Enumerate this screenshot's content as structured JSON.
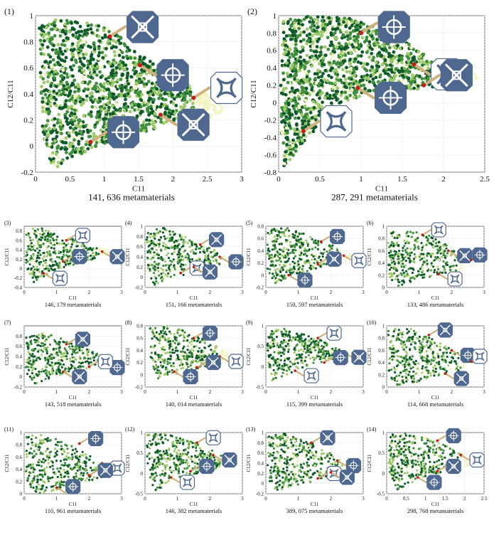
{
  "colors": {
    "dark_green": "#0f5a2a",
    "mid_green": "#3f8f3c",
    "light_green": "#9fca6a",
    "pale_yellow": "#f2f5c2",
    "marker_red": "#c0201a",
    "arrow_tan": "#cfb27d",
    "unit_cell_blue": "#4f6890"
  },
  "chart_data": [
    {
      "id": "(1)",
      "type": "scatter",
      "title": "",
      "xlabel": "C11",
      "ylabel": "C12/C11",
      "caption": "141, 636 metamaterials",
      "xlim": [
        0,
        3
      ],
      "ylim": [
        -0.2,
        1
      ],
      "xticks": [
        "0",
        "0.5",
        "1",
        "1.5",
        "2",
        "2.5",
        "3"
      ],
      "yticks": [
        "-0.2",
        "0",
        "0.2",
        "0.4",
        "0.6",
        "0.8",
        "1"
      ],
      "grid": true,
      "region": [
        [
          0.05,
          0.92
        ],
        [
          0.3,
          0.97
        ],
        [
          0.7,
          0.95
        ],
        [
          1.1,
          0.9
        ],
        [
          1.6,
          0.68
        ],
        [
          2.1,
          0.5
        ],
        [
          2.55,
          0.38
        ],
        [
          2.8,
          0.3
        ],
        [
          2.5,
          0.2
        ],
        [
          1.9,
          0.16
        ],
        [
          1.3,
          0.06
        ],
        [
          0.9,
          0.0
        ],
        [
          0.5,
          -0.1
        ],
        [
          0.25,
          -0.18
        ],
        [
          0.1,
          0.05
        ]
      ],
      "markers": [
        {
          "x": 1.08,
          "y": 0.84
        },
        {
          "x": 1.52,
          "y": 0.62
        },
        {
          "x": 2.3,
          "y": 0.37
        },
        {
          "x": 1.82,
          "y": 0.24
        },
        {
          "x": 0.8,
          "y": 0.03
        }
      ]
    },
    {
      "id": "(2)",
      "type": "scatter",
      "title": "",
      "xlabel": "C11",
      "ylabel": "C12/C11",
      "caption": "287, 291 metamaterials",
      "xlim": [
        0,
        2.5
      ],
      "ylim": [
        -0.8,
        1
      ],
      "xticks": [
        "0",
        "0.5",
        "1",
        "1.5",
        "2",
        "2.5"
      ],
      "yticks": [
        "-0.8",
        "-0.6",
        "-0.4",
        "-0.2",
        "0",
        "0.2",
        "0.4",
        "0.6",
        "0.8",
        "1"
      ],
      "grid": true,
      "region": [
        [
          0.05,
          0.95
        ],
        [
          0.4,
          1.0
        ],
        [
          0.9,
          0.97
        ],
        [
          1.3,
          0.85
        ],
        [
          1.7,
          0.6
        ],
        [
          2.1,
          0.4
        ],
        [
          2.45,
          0.3
        ],
        [
          2.3,
          0.14
        ],
        [
          1.8,
          0.15
        ],
        [
          1.2,
          0.15
        ],
        [
          0.8,
          0.0
        ],
        [
          0.45,
          -0.3
        ],
        [
          0.2,
          -0.6
        ],
        [
          0.05,
          -0.75
        ],
        [
          0.02,
          0.0
        ]
      ],
      "markers": [
        {
          "x": 1.0,
          "y": 0.8
        },
        {
          "x": 1.64,
          "y": 0.44
        },
        {
          "x": 1.76,
          "y": 0.2
        },
        {
          "x": 0.96,
          "y": 0.17
        },
        {
          "x": 0.3,
          "y": -0.33
        }
      ]
    },
    {
      "id": "(3)",
      "type": "scatter",
      "title": "",
      "xlabel": "C11",
      "ylabel": "C12/C11",
      "caption": "146, 179 metamaterials",
      "xlim": [
        0,
        3
      ],
      "ylim": [
        -0.4,
        0.9
      ],
      "xticks": [
        "0",
        "1",
        "2",
        "3"
      ],
      "yticks": [
        "-0.4",
        "-0.2",
        "0",
        "0.2",
        "0.4",
        "0.6",
        "0.8"
      ],
      "grid": true,
      "region": [
        [
          0.05,
          0.82
        ],
        [
          0.5,
          0.88
        ],
        [
          1.2,
          0.72
        ],
        [
          2.0,
          0.52
        ],
        [
          2.8,
          0.35
        ],
        [
          2.4,
          0.25
        ],
        [
          1.6,
          0.1
        ],
        [
          0.9,
          -0.05
        ],
        [
          0.3,
          -0.3
        ],
        [
          0.05,
          0.0
        ]
      ],
      "markers": [
        {
          "x": 1.3,
          "y": 0.6
        },
        {
          "x": 2.4,
          "y": 0.36
        },
        {
          "x": 1.2,
          "y": 0.15
        },
        {
          "x": 0.6,
          "y": -0.1
        }
      ]
    },
    {
      "id": "(4)",
      "type": "scatter",
      "title": "",
      "xlabel": "C11",
      "ylabel": "C12/C11",
      "caption": "151, 166 metamaterials",
      "xlim": [
        0,
        3
      ],
      "ylim": [
        -0.2,
        1
      ],
      "xticks": [
        "0",
        "1",
        "2",
        "3"
      ],
      "yticks": [
        "-0.2",
        "0",
        "0.2",
        "0.4",
        "0.6",
        "0.8",
        "1"
      ],
      "grid": true,
      "region": [
        [
          0.05,
          0.92
        ],
        [
          0.5,
          0.98
        ],
        [
          1.3,
          0.8
        ],
        [
          2.1,
          0.55
        ],
        [
          2.9,
          0.3
        ],
        [
          2.4,
          0.2
        ],
        [
          1.6,
          0.1
        ],
        [
          0.9,
          0.0
        ],
        [
          0.3,
          -0.15
        ],
        [
          0.05,
          0.1
        ]
      ],
      "markers": [
        {
          "x": 1.7,
          "y": 0.64
        },
        {
          "x": 2.3,
          "y": 0.4
        },
        {
          "x": 1.1,
          "y": 0.08
        },
        {
          "x": 1.5,
          "y": 0.2
        }
      ]
    },
    {
      "id": "(5)",
      "type": "scatter",
      "title": "",
      "xlabel": "C11",
      "ylabel": "C12/C11",
      "caption": "150, 597 metamaterials",
      "xlim": [
        0,
        3
      ],
      "ylim": [
        -0.2,
        0.8
      ],
      "xticks": [
        "0",
        "1",
        "2",
        "3"
      ],
      "yticks": [
        "-0.2",
        "0",
        "0.2",
        "0.4",
        "0.6",
        "0.8"
      ],
      "grid": true,
      "region": [
        [
          0.05,
          0.74
        ],
        [
          0.6,
          0.78
        ],
        [
          1.4,
          0.64
        ],
        [
          2.2,
          0.45
        ],
        [
          2.8,
          0.3
        ],
        [
          2.3,
          0.2
        ],
        [
          1.5,
          0.1
        ],
        [
          0.8,
          -0.02
        ],
        [
          0.2,
          -0.15
        ],
        [
          0.05,
          0.1
        ]
      ],
      "markers": [
        {
          "x": 1.7,
          "y": 0.55
        },
        {
          "x": 2.4,
          "y": 0.32
        },
        {
          "x": 1.6,
          "y": 0.18
        },
        {
          "x": 0.7,
          "y": 0.0
        }
      ]
    },
    {
      "id": "(6)",
      "type": "scatter",
      "title": "",
      "xlabel": "C11",
      "ylabel": "C12/C11",
      "caption": "133, 486 metamaterials",
      "xlim": [
        0,
        3
      ],
      "ylim": [
        0,
        1
      ],
      "xticks": [
        "0",
        "1",
        "2",
        "3"
      ],
      "yticks": [
        "0",
        "0.2",
        "0.4",
        "0.6",
        "0.8",
        "1"
      ],
      "grid": true,
      "region": [
        [
          0.05,
          0.95
        ],
        [
          0.5,
          0.98
        ],
        [
          1.3,
          0.85
        ],
        [
          2.0,
          0.65
        ],
        [
          2.7,
          0.42
        ],
        [
          2.3,
          0.3
        ],
        [
          1.6,
          0.2
        ],
        [
          1.0,
          0.1
        ],
        [
          0.3,
          0.02
        ],
        [
          0.05,
          0.2
        ]
      ],
      "markers": [
        {
          "x": 1.1,
          "y": 0.86
        },
        {
          "x": 1.9,
          "y": 0.6
        },
        {
          "x": 2.6,
          "y": 0.45
        },
        {
          "x": 1.6,
          "y": 0.22
        }
      ]
    },
    {
      "id": "(7)",
      "type": "scatter",
      "title": "",
      "xlabel": "C11",
      "ylabel": "C12/C11",
      "caption": "143, 518 metamaterials",
      "xlim": [
        0,
        3
      ],
      "ylim": [
        -0.2,
        1
      ],
      "xticks": [
        "0",
        "1",
        "2",
        "3"
      ],
      "yticks": [
        "-0.2",
        "0",
        "0.2",
        "0.4",
        "0.6",
        "0.8"
      ],
      "grid": true,
      "region": [
        [
          0.05,
          0.82
        ],
        [
          0.6,
          0.86
        ],
        [
          1.4,
          0.72
        ],
        [
          2.1,
          0.5
        ],
        [
          2.8,
          0.3
        ],
        [
          2.3,
          0.2
        ],
        [
          1.5,
          0.12
        ],
        [
          0.9,
          0.0
        ],
        [
          0.3,
          -0.15
        ],
        [
          0.05,
          0.1
        ]
      ],
      "markers": [
        {
          "x": 1.3,
          "y": 0.64
        },
        {
          "x": 2.6,
          "y": 0.28
        },
        {
          "x": 2.0,
          "y": 0.2
        },
        {
          "x": 1.2,
          "y": 0.1
        }
      ]
    },
    {
      "id": "(8)",
      "type": "scatter",
      "title": "",
      "xlabel": "C11",
      "ylabel": "C12/C11",
      "caption": "140, 014 metamaterials",
      "xlim": [
        0,
        3
      ],
      "ylim": [
        -0.2,
        0.8
      ],
      "xticks": [
        "0",
        "1",
        "2",
        "3"
      ],
      "yticks": [
        "-0.2",
        "0",
        "0.2",
        "0.4",
        "0.6",
        "0.8"
      ],
      "grid": true,
      "region": [
        [
          0.15,
          0.76
        ],
        [
          0.7,
          0.8
        ],
        [
          1.4,
          0.7
        ],
        [
          2.1,
          0.5
        ],
        [
          2.8,
          0.3
        ],
        [
          2.3,
          0.18
        ],
        [
          1.6,
          0.1
        ],
        [
          1.0,
          0.02
        ],
        [
          0.4,
          -0.1
        ],
        [
          0.15,
          0.3
        ]
      ],
      "markers": [
        {
          "x": 1.5,
          "y": 0.6
        },
        {
          "x": 2.3,
          "y": 0.3
        },
        {
          "x": 1.6,
          "y": 0.12
        },
        {
          "x": 0.9,
          "y": 0.05
        }
      ]
    },
    {
      "id": "(9)",
      "type": "scatter",
      "title": "",
      "xlabel": "C11",
      "ylabel": "C12/C11",
      "caption": "115, 399 metamaterials",
      "xlim": [
        0,
        3
      ],
      "ylim": [
        -0.5,
        1
      ],
      "xticks": [
        "0",
        "1",
        "2",
        "3"
      ],
      "yticks": [
        "-0.5",
        "0",
        "0.5",
        "1"
      ],
      "grid": true,
      "region": [
        [
          0.05,
          0.88
        ],
        [
          0.6,
          0.93
        ],
        [
          1.4,
          0.75
        ],
        [
          2.1,
          0.5
        ],
        [
          2.8,
          0.3
        ],
        [
          2.3,
          0.18
        ],
        [
          1.5,
          0.05
        ],
        [
          0.8,
          -0.15
        ],
        [
          0.2,
          -0.45
        ],
        [
          0.05,
          0.1
        ]
      ],
      "markers": [
        {
          "x": 1.6,
          "y": 0.7
        },
        {
          "x": 2.4,
          "y": 0.35
        },
        {
          "x": 1.8,
          "y": 0.1
        },
        {
          "x": 0.9,
          "y": -0.1
        }
      ]
    },
    {
      "id": "(10)",
      "type": "scatter",
      "title": "",
      "xlabel": "C11",
      "ylabel": "C12/C11",
      "caption": "114, 668 metamaterials",
      "xlim": [
        0,
        3
      ],
      "ylim": [
        0,
        1
      ],
      "xticks": [
        "0",
        "1",
        "2",
        "3"
      ],
      "yticks": [
        "0",
        "0.2",
        "0.4",
        "0.6",
        "0.8",
        "1"
      ],
      "grid": true,
      "region": [
        [
          0.05,
          0.95
        ],
        [
          0.6,
          0.98
        ],
        [
          1.3,
          0.82
        ],
        [
          2.0,
          0.62
        ],
        [
          2.8,
          0.4
        ],
        [
          2.3,
          0.28
        ],
        [
          1.5,
          0.18
        ],
        [
          0.9,
          0.08
        ],
        [
          0.3,
          0.02
        ],
        [
          0.05,
          0.2
        ]
      ],
      "markers": [
        {
          "x": 1.3,
          "y": 0.85
        },
        {
          "x": 2.0,
          "y": 0.6
        },
        {
          "x": 2.6,
          "y": 0.42
        },
        {
          "x": 1.8,
          "y": 0.22
        }
      ]
    },
    {
      "id": "(11)",
      "type": "scatter",
      "title": "",
      "xlabel": "C11",
      "ylabel": "C12/C11",
      "caption": "110, 961 metamaterials",
      "xlim": [
        0,
        3
      ],
      "ylim": [
        0,
        1
      ],
      "xticks": [
        "0",
        "1",
        "2",
        "3"
      ],
      "yticks": [
        "0",
        "0.2",
        "0.4",
        "0.6",
        "0.8",
        "1"
      ],
      "grid": true,
      "region": [
        [
          0.05,
          0.95
        ],
        [
          0.6,
          0.98
        ],
        [
          1.4,
          0.82
        ],
        [
          2.1,
          0.6
        ],
        [
          2.9,
          0.35
        ],
        [
          2.3,
          0.25
        ],
        [
          1.6,
          0.15
        ],
        [
          1.0,
          0.06
        ],
        [
          0.4,
          0.0
        ],
        [
          0.05,
          0.2
        ]
      ],
      "markers": [
        {
          "x": 1.7,
          "y": 0.82
        },
        {
          "x": 2.4,
          "y": 0.5
        },
        {
          "x": 2.0,
          "y": 0.3
        },
        {
          "x": 1.0,
          "y": 0.1
        }
      ]
    },
    {
      "id": "(12)",
      "type": "scatter",
      "title": "",
      "xlabel": "C11",
      "ylabel": "C12/C11",
      "caption": "146, 382 metamaterials",
      "xlim": [
        0,
        3
      ],
      "ylim": [
        -0.5,
        1
      ],
      "xticks": [
        "0",
        "1",
        "2",
        "3"
      ],
      "yticks": [
        "-0.5",
        "0",
        "0.5",
        "1"
      ],
      "grid": true,
      "region": [
        [
          0.05,
          0.95
        ],
        [
          0.6,
          0.98
        ],
        [
          1.4,
          0.8
        ],
        [
          2.1,
          0.55
        ],
        [
          2.9,
          0.3
        ],
        [
          2.4,
          0.15
        ],
        [
          1.6,
          0.0
        ],
        [
          0.9,
          -0.15
        ],
        [
          0.3,
          -0.45
        ],
        [
          0.05,
          0.1
        ]
      ],
      "markers": [
        {
          "x": 1.6,
          "y": 0.75
        },
        {
          "x": 2.1,
          "y": 0.45
        },
        {
          "x": 1.4,
          "y": 0.05
        },
        {
          "x": 0.8,
          "y": -0.1
        }
      ]
    },
    {
      "id": "(13)",
      "type": "scatter",
      "title": "",
      "xlabel": "C11",
      "ylabel": "C12/C11",
      "caption": "389, 075 metamaterials",
      "xlim": [
        0,
        3
      ],
      "ylim": [
        -0.2,
        1
      ],
      "xticks": [
        "0",
        "1",
        "2",
        "3"
      ],
      "yticks": [
        "-0.2",
        "0",
        "0.2",
        "0.4",
        "0.6",
        "0.8",
        "1"
      ],
      "grid": true,
      "region": [
        [
          0.05,
          0.95
        ],
        [
          0.6,
          0.98
        ],
        [
          1.5,
          0.8
        ],
        [
          2.2,
          0.55
        ],
        [
          2.9,
          0.32
        ],
        [
          2.4,
          0.2
        ],
        [
          1.7,
          0.08
        ],
        [
          1.0,
          -0.02
        ],
        [
          0.3,
          -0.15
        ],
        [
          0.05,
          0.1
        ]
      ],
      "markers": [
        {
          "x": 1.4,
          "y": 0.8
        },
        {
          "x": 2.2,
          "y": 0.45
        },
        {
          "x": 1.6,
          "y": 0.1
        },
        {
          "x": 2.0,
          "y": 0.22
        }
      ]
    },
    {
      "id": "(14)",
      "type": "scatter",
      "title": "",
      "xlabel": "C11",
      "ylabel": "C12/C11",
      "caption": "298, 768 metamaterials",
      "xlim": [
        0,
        2.5
      ],
      "ylim": [
        -0.5,
        1
      ],
      "xticks": [
        "0",
        "0.5",
        "1",
        "1.5",
        "2",
        "2.5"
      ],
      "yticks": [
        "-0.5",
        "0",
        "0.5",
        "1"
      ],
      "grid": true,
      "region": [
        [
          0.05,
          0.95
        ],
        [
          0.5,
          0.98
        ],
        [
          1.2,
          0.82
        ],
        [
          1.8,
          0.55
        ],
        [
          2.4,
          0.3
        ],
        [
          2.0,
          0.15
        ],
        [
          1.4,
          0.02
        ],
        [
          0.8,
          -0.15
        ],
        [
          0.25,
          -0.45
        ],
        [
          0.05,
          0.1
        ]
      ],
      "markers": [
        {
          "x": 1.3,
          "y": 0.8
        },
        {
          "x": 1.9,
          "y": 0.45
        },
        {
          "x": 1.3,
          "y": 0.05
        },
        {
          "x": 0.8,
          "y": -0.1
        }
      ]
    }
  ]
}
